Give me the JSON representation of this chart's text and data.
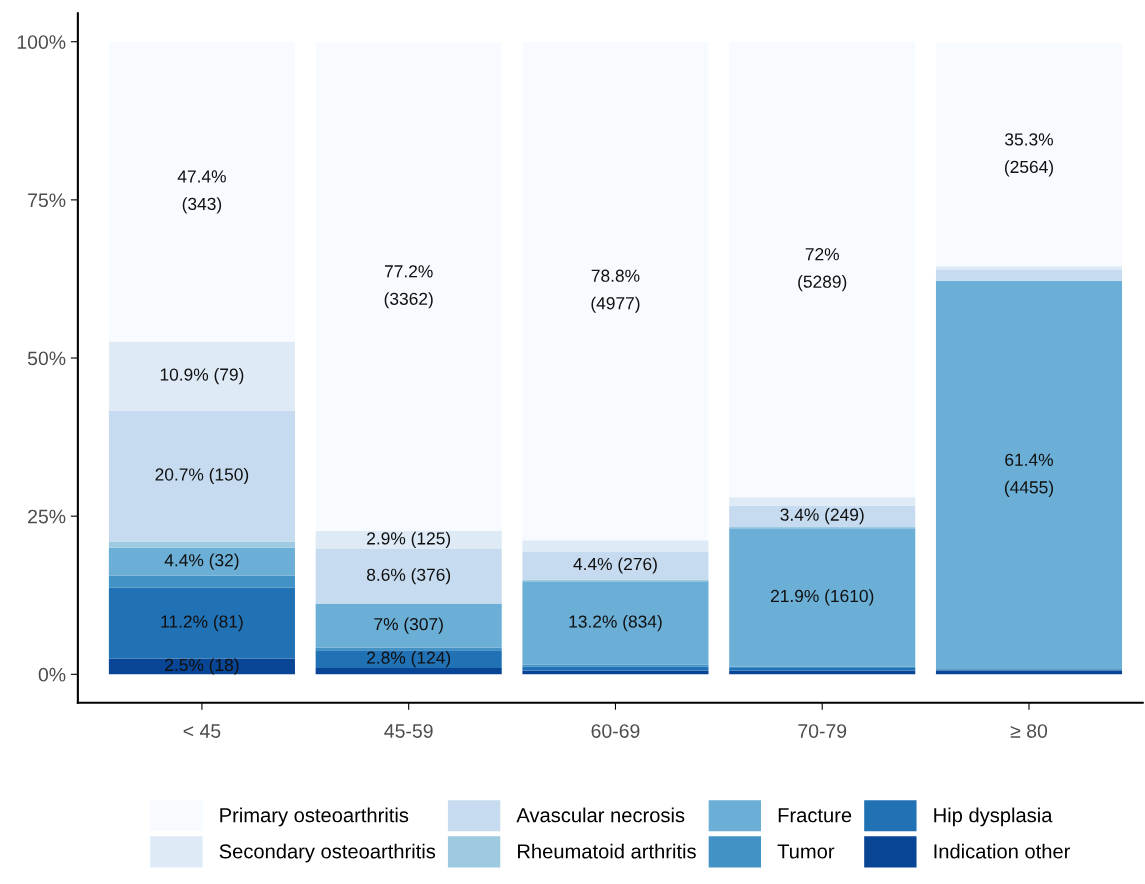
{
  "chart_data": {
    "type": "bar",
    "stacked": true,
    "categories": [
      "< 45",
      "45-59",
      "60-69",
      "70-79",
      "≥ 80"
    ],
    "series": [
      {
        "name": "Indication other",
        "color": "#084594",
        "values": [
          2.5,
          1.0,
          0.6,
          0.6,
          0.6
        ],
        "value_labels": [
          "2.5% (18)",
          null,
          null,
          null,
          null
        ]
      },
      {
        "name": "Hip dysplasia",
        "color": "#2171b5",
        "values": [
          11.2,
          2.8,
          0.6,
          0.4,
          0.2
        ],
        "value_labels": [
          "11.2% (81)",
          "2.8% (124)",
          null,
          null,
          null
        ]
      },
      {
        "name": "Tumor",
        "color": "#4292c6",
        "values": [
          1.9,
          0.4,
          0.3,
          0.2,
          null
        ],
        "value_labels": [
          null,
          null,
          null,
          null,
          null
        ]
      },
      {
        "name": "Fracture",
        "color": "#6baed6",
        "values": [
          4.4,
          7,
          13.2,
          21.9,
          61.4
        ],
        "value_labels": [
          "4.4% (32)",
          "7% (307)",
          "13.2% (834)",
          "21.9% (1610)",
          "61.4%\n(4455)"
        ]
      },
      {
        "name": "Rheumatoid arthritis",
        "color": "#9ecae1",
        "values": [
          1.0,
          null,
          0.3,
          0.2,
          null
        ],
        "value_labels": [
          null,
          null,
          null,
          null,
          null
        ]
      },
      {
        "name": "Avascular necrosis",
        "color": "#c6dbef",
        "values": [
          20.7,
          8.6,
          4.4,
          3.4,
          1.7
        ],
        "value_labels": [
          "20.7% (150)",
          "8.6% (376)",
          "4.4% (276)",
          "3.4% (249)",
          null
        ]
      },
      {
        "name": "Secondary osteoarthritis",
        "color": "#deebf7",
        "values": [
          10.9,
          2.9,
          1.8,
          1.3,
          0.6
        ],
        "value_labels": [
          "10.9% (79)",
          "2.9% (125)",
          null,
          null,
          null
        ]
      },
      {
        "name": "Primary osteoarthritis",
        "color": "#f7fbff",
        "values": [
          47.4,
          77.2,
          78.8,
          72,
          35.3
        ],
        "value_labels": [
          "47.4%\n(343)",
          "77.2%\n(3362)",
          "78.8%\n(4977)",
          "72%\n(5289)",
          "35.3%\n(2564)"
        ]
      }
    ],
    "ylim": [
      -4.5,
      104.5
    ],
    "yticks": [
      {
        "value": 0,
        "label": "0%"
      },
      {
        "value": 25,
        "label": "25%"
      },
      {
        "value": 50,
        "label": "50%"
      },
      {
        "value": 75,
        "label": "75%"
      },
      {
        "value": 100,
        "label": "100%"
      }
    ],
    "grid": false,
    "legend": "bottom"
  }
}
